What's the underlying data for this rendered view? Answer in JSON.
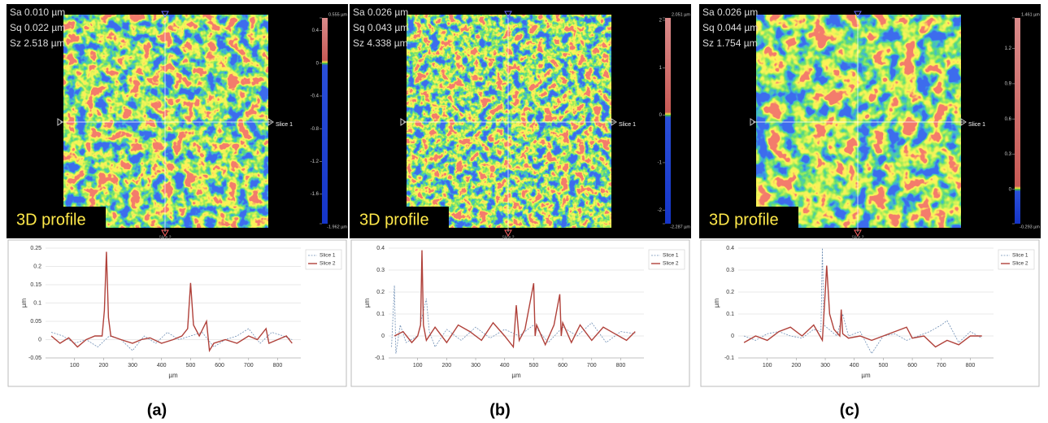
{
  "panels": [
    {
      "caption": "(a)",
      "stats": [
        "Sa 0.010 µm",
        "Sq 0.022 µm",
        "Sz 2.518 µm"
      ],
      "profile_label": "3D profile",
      "slice_labels": [
        "Slice 1",
        "Slice 2"
      ],
      "colorbar": {
        "lim": [
          -1.962,
          0.555
        ],
        "ticks": [
          {
            "value": 0.555,
            "label": "0.555 µm"
          },
          0.4,
          0,
          -0.4,
          -0.8,
          -1.2,
          -1.6,
          {
            "value": -1.962,
            "label": "-1.962 µm"
          }
        ]
      }
    },
    {
      "caption": "(b)",
      "stats": [
        "Sa 0.026 µm",
        "Sq 0.043 µm",
        "Sz 4.338 µm"
      ],
      "profile_label": "3D profile",
      "slice_labels": [
        "Slice 1",
        "Slice 2"
      ],
      "colorbar": {
        "lim": [
          -2.287,
          2.051
        ],
        "ticks": [
          {
            "value": 2.051,
            "label": "2.051 µm"
          },
          2,
          1,
          0,
          -1,
          -2,
          {
            "value": -2.287,
            "label": "-2.287 µm"
          }
        ]
      }
    },
    {
      "caption": "(c)",
      "stats": [
        "Sa 0.026 µm",
        "Sq 0.044 µm",
        "Sz 1.754 µm"
      ],
      "profile_label": "3D profile",
      "slice_labels": [
        "Slice 1",
        "Slice 2"
      ],
      "colorbar": {
        "lim": [
          -0.293,
          1.461
        ],
        "ticks": [
          {
            "value": 1.461,
            "label": "1.461 µm"
          },
          1.2,
          0.9,
          0.6,
          0.3,
          0,
          {
            "value": -0.293,
            "label": "-0.293 µm"
          }
        ]
      }
    }
  ],
  "chart_data": [
    {
      "type": "line",
      "xlabel": "µm",
      "ylabel": "µm",
      "xlim": [
        0,
        880
      ],
      "ylim": [
        -0.05,
        0.25
      ],
      "xticks": [
        100,
        200,
        300,
        400,
        500,
        600,
        700,
        800
      ],
      "yticks": [
        -0.05,
        0,
        0.05,
        0.1,
        0.15,
        0.2,
        0.25
      ],
      "grid": true,
      "legend": "upper right",
      "series": [
        {
          "name": "Slice 1",
          "color": "#6f8fb5",
          "dash": true,
          "x": [
            20,
            60,
            100,
            140,
            180,
            220,
            260,
            300,
            340,
            380,
            420,
            460,
            500,
            540,
            580,
            620,
            660,
            700,
            740,
            780,
            820,
            850
          ],
          "values": [
            0.02,
            0.01,
            -0.01,
            0.0,
            -0.02,
            0.01,
            0.0,
            -0.03,
            0.01,
            -0.01,
            0.02,
            0.0,
            0.01,
            0.02,
            -0.02,
            0.0,
            0.01,
            0.03,
            -0.01,
            0.02,
            0.01,
            0.0
          ]
        },
        {
          "name": "Slice 2",
          "color": "#b0413a",
          "dash": false,
          "x": [
            20,
            50,
            80,
            110,
            140,
            170,
            195,
            203,
            210,
            217,
            225,
            260,
            300,
            330,
            360,
            400,
            440,
            470,
            490,
            500,
            510,
            530,
            555,
            565,
            580,
            620,
            660,
            700,
            730,
            760,
            770,
            800,
            830,
            850
          ],
          "values": [
            0.01,
            -0.01,
            0.005,
            -0.02,
            0.0,
            0.01,
            0.01,
            0.08,
            0.24,
            0.06,
            0.01,
            0.0,
            -0.01,
            0.0,
            0.005,
            -0.01,
            0.0,
            0.01,
            0.03,
            0.155,
            0.04,
            0.01,
            0.05,
            -0.03,
            -0.01,
            0.0,
            -0.01,
            0.01,
            0.0,
            0.03,
            -0.01,
            0.0,
            0.01,
            -0.01
          ]
        }
      ]
    },
    {
      "type": "line",
      "xlabel": "µm",
      "ylabel": "µm",
      "xlim": [
        0,
        880
      ],
      "ylim": [
        -0.1,
        0.4
      ],
      "xticks": [
        100,
        200,
        300,
        400,
        500,
        600,
        700,
        800
      ],
      "yticks": [
        -0.1,
        0,
        0.1,
        0.2,
        0.3,
        0.4
      ],
      "grid": true,
      "legend": "upper right",
      "series": [
        {
          "name": "Slice 1",
          "color": "#6f8fb5",
          "dash": true,
          "x": [
            10,
            20,
            25,
            40,
            60,
            100,
            130,
            140,
            160,
            200,
            250,
            300,
            350,
            400,
            450,
            500,
            550,
            600,
            650,
            700,
            750,
            800,
            850
          ],
          "values": [
            -0.05,
            0.23,
            -0.08,
            0.05,
            -0.03,
            0.0,
            0.17,
            0.02,
            -0.05,
            0.03,
            -0.02,
            0.04,
            -0.01,
            0.03,
            0.0,
            0.05,
            -0.03,
            0.04,
            0.0,
            0.06,
            -0.03,
            0.02,
            0.01
          ]
        },
        {
          "name": "Slice 2",
          "color": "#b0413a",
          "dash": false,
          "x": [
            20,
            50,
            80,
            100,
            110,
            115,
            120,
            130,
            160,
            200,
            240,
            280,
            320,
            360,
            400,
            430,
            440,
            450,
            470,
            500,
            505,
            510,
            540,
            570,
            590,
            595,
            600,
            630,
            660,
            700,
            740,
            780,
            820,
            850
          ],
          "values": [
            0.0,
            0.02,
            -0.03,
            0.0,
            0.05,
            0.39,
            0.05,
            -0.02,
            0.04,
            -0.03,
            0.05,
            0.02,
            -0.02,
            0.06,
            0.0,
            -0.05,
            0.14,
            -0.02,
            0.03,
            0.24,
            0.0,
            0.05,
            -0.04,
            0.05,
            0.19,
            0.0,
            0.06,
            -0.03,
            0.05,
            -0.02,
            0.04,
            0.01,
            -0.02,
            0.02
          ]
        }
      ]
    },
    {
      "type": "line",
      "xlabel": "µm",
      "ylabel": "µm",
      "xlim": [
        0,
        880
      ],
      "ylim": [
        -0.1,
        0.4
      ],
      "xticks": [
        100,
        200,
        300,
        400,
        500,
        600,
        700,
        800
      ],
      "yticks": [
        -0.1,
        0,
        0.1,
        0.2,
        0.3,
        0.4
      ],
      "grid": true,
      "legend": "upper right",
      "series": [
        {
          "name": "Slice 1",
          "color": "#6f8fb5",
          "dash": true,
          "x": [
            20,
            60,
            100,
            140,
            180,
            220,
            260,
            285,
            290,
            295,
            340,
            360,
            380,
            420,
            460,
            500,
            540,
            580,
            620,
            660,
            700,
            720,
            760,
            800,
            840
          ],
          "values": [
            0.0,
            -0.02,
            0.01,
            0.02,
            0.0,
            -0.01,
            0.03,
            0.02,
            0.4,
            0.05,
            0.0,
            0.1,
            0.0,
            0.02,
            -0.08,
            0.0,
            0.01,
            -0.02,
            0.0,
            0.02,
            0.05,
            0.07,
            -0.03,
            0.02,
            -0.01
          ]
        },
        {
          "name": "Slice 2",
          "color": "#b0413a",
          "dash": false,
          "x": [
            20,
            60,
            100,
            140,
            180,
            220,
            260,
            290,
            300,
            305,
            315,
            330,
            350,
            355,
            360,
            380,
            420,
            460,
            500,
            540,
            580,
            600,
            640,
            680,
            720,
            760,
            800,
            840
          ],
          "values": [
            -0.03,
            0.0,
            -0.02,
            0.02,
            0.04,
            0.0,
            0.05,
            -0.02,
            0.2,
            0.32,
            0.1,
            0.03,
            0.0,
            0.12,
            0.01,
            -0.01,
            0.0,
            -0.02,
            0.0,
            0.02,
            0.04,
            -0.01,
            0.0,
            -0.05,
            -0.02,
            -0.04,
            0.0,
            0.0
          ]
        }
      ]
    }
  ]
}
